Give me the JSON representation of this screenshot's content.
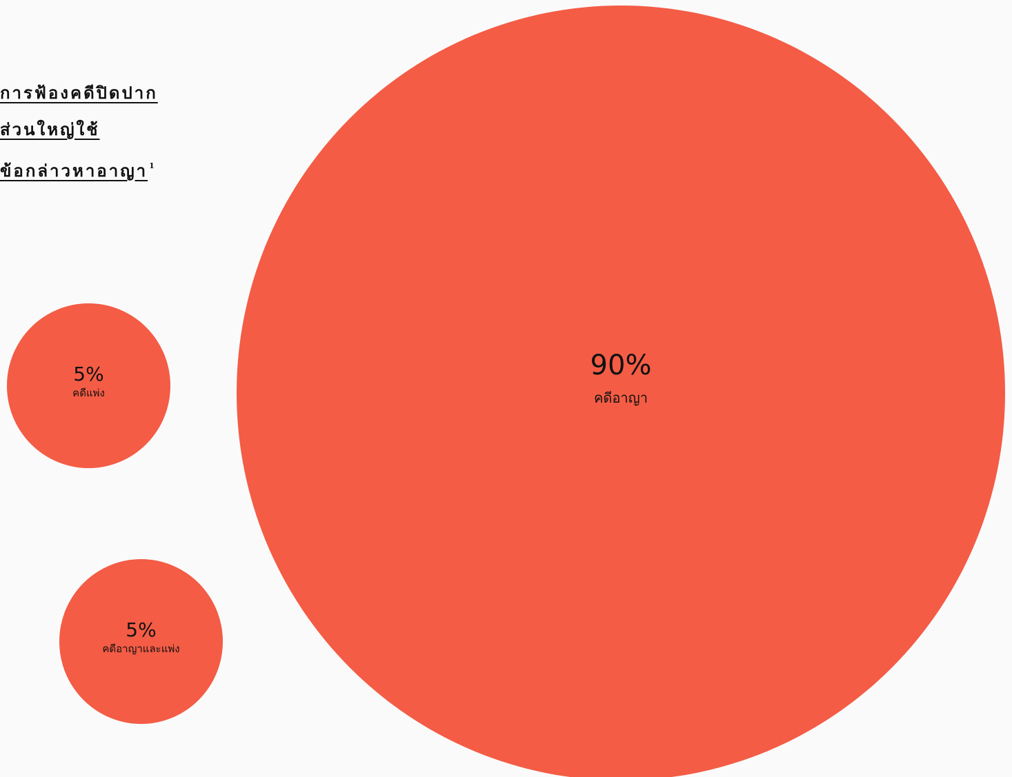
{
  "title": {
    "lines": [
      "การฟ้องคดีปิดปาก",
      "ส่วนใหญ่ใช้",
      "ข้อกล่าวหาอาญา"
    ],
    "footnote": "1"
  },
  "colors": {
    "bubble": "#f45c45",
    "background": "#fafafa",
    "text": "#111111"
  },
  "chart_data": {
    "type": "bubble",
    "series": [
      {
        "name": "คดีอาญา",
        "value": 90,
        "value_label": "90%"
      },
      {
        "name": "คดีแพ่ง",
        "value": 5,
        "value_label": "5%"
      },
      {
        "name": "คดีอาญาและแพ่ง",
        "value": 5,
        "value_label": "5%"
      }
    ]
  }
}
